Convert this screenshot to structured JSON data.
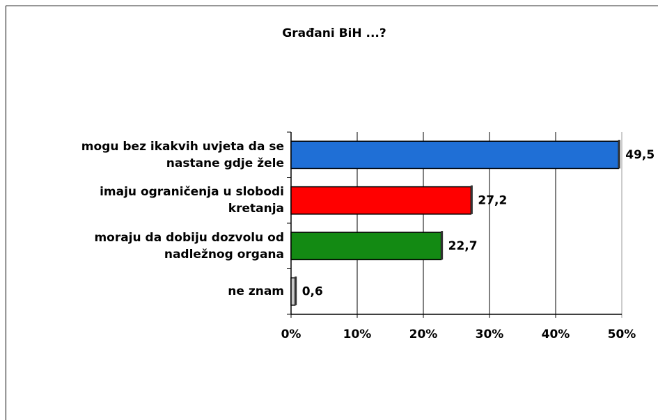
{
  "chart_data": {
    "type": "bar",
    "orientation": "horizontal",
    "title": "Građani BiH ...?",
    "categories": [
      "mogu bez ikakvih uvjeta da se\nnastane gdje žele",
      "imaju ograničenja u slobodi\nkretanja",
      "moraju da dobiju dozvolu od\nnadležnog organa",
      "ne znam"
    ],
    "values": [
      49.5,
      27.2,
      22.7,
      0.6
    ],
    "value_labels": [
      "49,5",
      "27,2",
      "22,7",
      "0,6"
    ],
    "colors": [
      "#1f6fd6",
      "#ff0000",
      "#138a13",
      "#c8c8c8"
    ],
    "xlim": [
      0,
      50
    ],
    "xticks": [
      {
        "value": 0,
        "label": "0%"
      },
      {
        "value": 10,
        "label": "10%"
      },
      {
        "value": 20,
        "label": "20%"
      },
      {
        "value": 30,
        "label": "30%"
      },
      {
        "value": 40,
        "label": "40%"
      },
      {
        "value": 50,
        "label": "50%"
      }
    ],
    "grid": true
  }
}
